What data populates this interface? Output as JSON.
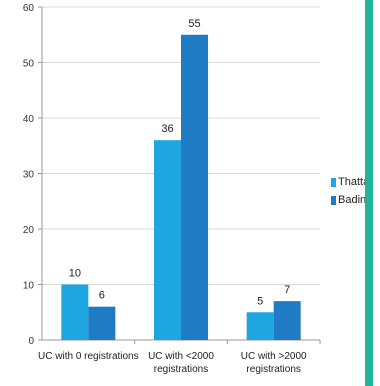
{
  "chart_data": {
    "type": "bar",
    "categories": [
      [
        "UC with 0 registrations"
      ],
      [
        "UC with <2000",
        "registrations"
      ],
      [
        "UC with >2000",
        "registrations"
      ]
    ],
    "series": [
      {
        "name": "Thatta",
        "values": [
          10,
          36,
          5
        ],
        "color": "#1ea6e0"
      },
      {
        "name": "Badin",
        "values": [
          6,
          55,
          7
        ],
        "color": "#1f7bc4"
      }
    ],
    "ylim": [
      0,
      60
    ],
    "yticks": [
      0,
      10,
      20,
      30,
      40,
      50,
      60
    ],
    "grid": true,
    "legend_position": "right",
    "title": "",
    "xlabel": "",
    "ylabel": ""
  },
  "accent": {
    "teal": "#1fb59a"
  }
}
